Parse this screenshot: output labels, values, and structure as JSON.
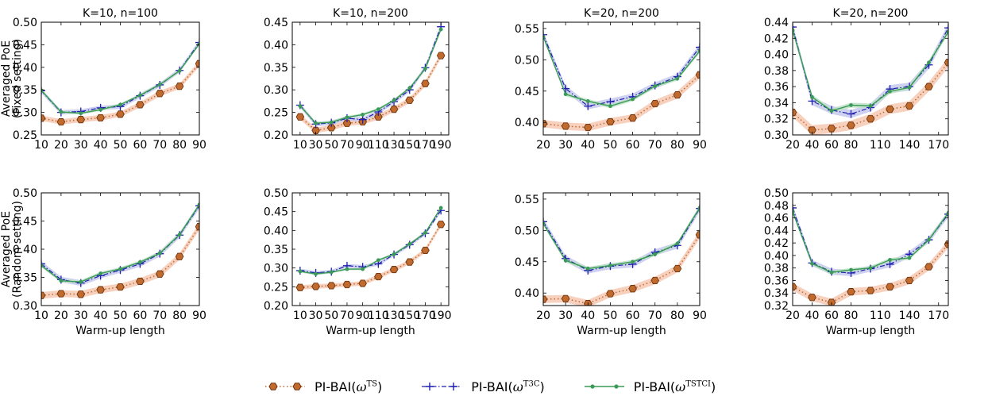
{
  "figure": {
    "row_ylabels": [
      [
        "Averaged PoE",
        "(Fixed setting)"
      ],
      [
        "Averaged PoE",
        "(Random setting)"
      ]
    ],
    "xlabel": "Warm-up length"
  },
  "legend": [
    {
      "prefix": "PI-BAI(",
      "omega": "ω",
      "sup": "TS",
      "suffix": ")",
      "series": "ts"
    },
    {
      "prefix": "PI-BAI(",
      "omega": "ω",
      "sup": "T3C",
      "suffix": ")",
      "series": "t3c"
    },
    {
      "prefix": "PI-BAI(",
      "omega": "ω",
      "sup": "TSTCI",
      "suffix": ")",
      "series": "tstci"
    }
  ],
  "colors": {
    "ts": "#c06a2e",
    "ts_edge": "#6e3410",
    "ts_band": "#f6c9b3",
    "t3c": "#1f1fb0",
    "t3c_band": "#c7c9ee",
    "tstci": "#3a9a57",
    "tstci_band": "#bfe2c8"
  },
  "chart_data": [
    {
      "type": "line",
      "title": "K=10, n=100",
      "xlabel": "",
      "ylabel": "Averaged PoE (Fixed setting)",
      "x": [
        10,
        20,
        30,
        40,
        50,
        60,
        70,
        80,
        90
      ],
      "xticks": [
        10,
        20,
        30,
        40,
        50,
        60,
        70,
        80,
        90
      ],
      "xlim": [
        10,
        90
      ],
      "ylim": [
        0.25,
        0.5
      ],
      "yticks": [
        "0.25",
        "0.30",
        "0.35",
        "0.40",
        "0.45",
        "0.50"
      ],
      "series": [
        {
          "name": "PI-BAI(ωTS)",
          "key": "ts",
          "values": [
            0.287,
            0.279,
            0.284,
            0.288,
            0.296,
            0.317,
            0.342,
            0.358,
            0.408
          ]
        },
        {
          "name": "PI-BAI(ωT3C)",
          "key": "t3c",
          "values": [
            0.348,
            0.3,
            0.302,
            0.31,
            0.313,
            0.337,
            0.361,
            0.393,
            0.455
          ]
        },
        {
          "name": "PI-BAI(ωTSTCI)",
          "key": "tstci",
          "values": [
            0.349,
            0.301,
            0.298,
            0.306,
            0.317,
            0.338,
            0.362,
            0.392,
            0.452
          ]
        }
      ]
    },
    {
      "type": "line",
      "title": "K=10, n=200",
      "xlabel": "",
      "ylabel": "",
      "x": [
        10,
        30,
        50,
        70,
        90,
        110,
        130,
        150,
        170,
        190
      ],
      "xticks": [
        10,
        30,
        50,
        70,
        90,
        110,
        130,
        150,
        170,
        190
      ],
      "xlim": [
        0,
        200
      ],
      "ylim": [
        0.2,
        0.45
      ],
      "yticks": [
        "0.20",
        "0.25",
        "0.30",
        "0.35",
        "0.40",
        "0.45"
      ],
      "series": [
        {
          "name": "PI-BAI(ωTS)",
          "key": "ts",
          "values": [
            0.24,
            0.21,
            0.216,
            0.226,
            0.229,
            0.24,
            0.257,
            0.277,
            0.314,
            0.376
          ]
        },
        {
          "name": "PI-BAI(ωT3C)",
          "key": "t3c",
          "values": [
            0.266,
            0.224,
            0.227,
            0.237,
            0.234,
            0.251,
            0.274,
            0.3,
            0.349,
            0.44
          ]
        },
        {
          "name": "PI-BAI(ωTSTCI)",
          "key": "tstci",
          "values": [
            0.264,
            0.226,
            0.228,
            0.239,
            0.245,
            0.257,
            0.277,
            0.304,
            0.347,
            0.434
          ]
        }
      ]
    },
    {
      "type": "line",
      "title": "K=20, n=200",
      "xlabel": "",
      "ylabel": "",
      "x": [
        20,
        30,
        40,
        50,
        60,
        70,
        80,
        90
      ],
      "xticks": [
        20,
        30,
        40,
        50,
        60,
        70,
        80,
        90
      ],
      "xlim": [
        20,
        90
      ],
      "ylim": [
        0.38,
        0.56
      ],
      "yticks": [
        "0.40",
        "0.45",
        "0.50",
        "0.55"
      ],
      "series": [
        {
          "name": "PI-BAI(ωTS)",
          "key": "ts",
          "values": [
            0.398,
            0.394,
            0.392,
            0.401,
            0.407,
            0.43,
            0.444,
            0.476
          ]
        },
        {
          "name": "PI-BAI(ωT3C)",
          "key": "t3c",
          "values": [
            0.54,
            0.454,
            0.426,
            0.433,
            0.441,
            0.459,
            0.473,
            0.52
          ]
        },
        {
          "name": "PI-BAI(ωTSTCI)",
          "key": "tstci",
          "values": [
            0.537,
            0.445,
            0.434,
            0.426,
            0.437,
            0.458,
            0.47,
            0.514
          ]
        }
      ]
    },
    {
      "type": "line",
      "title": "K=20, n=200",
      "xlabel": "",
      "ylabel": "",
      "x": [
        20,
        40,
        60,
        80,
        100,
        120,
        140,
        160,
        180
      ],
      "xticks": [
        20,
        40,
        60,
        80,
        110,
        140,
        170
      ],
      "xlim": [
        20,
        180
      ],
      "ylim": [
        0.3,
        0.44
      ],
      "yticks": [
        "0.30",
        "0.32",
        "0.34",
        "0.36",
        "0.38",
        "0.40",
        "0.42",
        "0.44"
      ],
      "series": [
        {
          "name": "PI-BAI(ωTS)",
          "key": "ts",
          "values": [
            0.328,
            0.306,
            0.308,
            0.312,
            0.32,
            0.332,
            0.336,
            0.36,
            0.39
          ]
        },
        {
          "name": "PI-BAI(ωT3C)",
          "key": "t3c",
          "values": [
            0.434,
            0.342,
            0.331,
            0.326,
            0.334,
            0.357,
            0.36,
            0.387,
            0.433
          ]
        },
        {
          "name": "PI-BAI(ωTSTCI)",
          "key": "tstci",
          "values": [
            0.43,
            0.347,
            0.33,
            0.337,
            0.336,
            0.354,
            0.359,
            0.39,
            0.428
          ]
        }
      ]
    },
    {
      "type": "line",
      "title": "",
      "xlabel": "Warm-up length",
      "ylabel": "Averaged PoE (Random setting)",
      "x": [
        10,
        20,
        30,
        40,
        50,
        60,
        70,
        80,
        90
      ],
      "xticks": [
        10,
        20,
        30,
        40,
        50,
        60,
        70,
        80,
        90
      ],
      "xlim": [
        10,
        90
      ],
      "ylim": [
        0.3,
        0.5
      ],
      "yticks": [
        "0.30",
        "0.35",
        "0.40",
        "0.45",
        "0.50"
      ],
      "series": [
        {
          "name": "PI-BAI(ωTS)",
          "key": "ts",
          "values": [
            0.318,
            0.321,
            0.32,
            0.328,
            0.333,
            0.343,
            0.356,
            0.387,
            0.44
          ]
        },
        {
          "name": "PI-BAI(ωT3C)",
          "key": "t3c",
          "values": [
            0.374,
            0.346,
            0.34,
            0.353,
            0.363,
            0.374,
            0.392,
            0.425,
            0.477
          ]
        },
        {
          "name": "PI-BAI(ωTSTCI)",
          "key": "tstci",
          "values": [
            0.371,
            0.344,
            0.342,
            0.357,
            0.365,
            0.377,
            0.393,
            0.426,
            0.479
          ]
        }
      ]
    },
    {
      "type": "line",
      "title": "",
      "xlabel": "Warm-up length",
      "ylabel": "",
      "x": [
        10,
        30,
        50,
        70,
        90,
        110,
        130,
        150,
        170,
        190
      ],
      "xticks": [
        10,
        30,
        50,
        70,
        90,
        110,
        130,
        150,
        170,
        190
      ],
      "xlim": [
        0,
        200
      ],
      "ylim": [
        0.2,
        0.5
      ],
      "yticks": [
        "0.20",
        "0.25",
        "0.30",
        "0.35",
        "0.40",
        "0.45",
        "0.50"
      ],
      "series": [
        {
          "name": "PI-BAI(ωTS)",
          "key": "ts",
          "values": [
            0.248,
            0.251,
            0.253,
            0.256,
            0.259,
            0.277,
            0.296,
            0.316,
            0.347,
            0.416
          ]
        },
        {
          "name": "PI-BAI(ωT3C)",
          "key": "t3c",
          "values": [
            0.293,
            0.287,
            0.29,
            0.306,
            0.303,
            0.311,
            0.336,
            0.362,
            0.392,
            0.453
          ]
        },
        {
          "name": "PI-BAI(ωTSTCI)",
          "key": "tstci",
          "values": [
            0.291,
            0.284,
            0.289,
            0.297,
            0.297,
            0.321,
            0.337,
            0.364,
            0.394,
            0.46
          ]
        }
      ]
    },
    {
      "type": "line",
      "title": "",
      "xlabel": "Warm-up length",
      "ylabel": "",
      "x": [
        20,
        30,
        40,
        50,
        60,
        70,
        80,
        90
      ],
      "xticks": [
        20,
        30,
        40,
        50,
        60,
        70,
        80,
        90
      ],
      "xlim": [
        20,
        90
      ],
      "ylim": [
        0.38,
        0.56
      ],
      "yticks": [
        "0.40",
        "0.45",
        "0.50",
        "0.55"
      ],
      "series": [
        {
          "name": "PI-BAI(ωTS)",
          "key": "ts",
          "values": [
            0.39,
            0.391,
            0.383,
            0.399,
            0.407,
            0.42,
            0.439,
            0.493
          ]
        },
        {
          "name": "PI-BAI(ωT3C)",
          "key": "t3c",
          "values": [
            0.514,
            0.455,
            0.436,
            0.443,
            0.446,
            0.465,
            0.476,
            0.535
          ]
        },
        {
          "name": "PI-BAI(ωTSTCI)",
          "key": "tstci",
          "values": [
            0.511,
            0.452,
            0.439,
            0.444,
            0.45,
            0.462,
            0.479,
            0.536
          ]
        }
      ]
    },
    {
      "type": "line",
      "title": "",
      "xlabel": "Warm-up length",
      "ylabel": "",
      "x": [
        20,
        40,
        60,
        80,
        100,
        120,
        140,
        160,
        180
      ],
      "xticks": [
        20,
        40,
        60,
        80,
        110,
        140,
        170
      ],
      "xlim": [
        20,
        180
      ],
      "ylim": [
        0.32,
        0.5
      ],
      "yticks": [
        "0.32",
        "0.34",
        "0.36",
        "0.38",
        "0.40",
        "0.42",
        "0.44",
        "0.46",
        "0.48",
        "0.50"
      ],
      "series": [
        {
          "name": "PI-BAI(ωTS)",
          "key": "ts",
          "values": [
            0.35,
            0.333,
            0.325,
            0.342,
            0.344,
            0.35,
            0.36,
            0.382,
            0.418
          ]
        },
        {
          "name": "PI-BAI(ωT3C)",
          "key": "t3c",
          "values": [
            0.476,
            0.388,
            0.374,
            0.372,
            0.379,
            0.386,
            0.402,
            0.425,
            0.466
          ]
        },
        {
          "name": "PI-BAI(ωTSTCI)",
          "key": "tstci",
          "values": [
            0.47,
            0.387,
            0.373,
            0.377,
            0.38,
            0.393,
            0.396,
            0.425,
            0.468
          ]
        }
      ]
    }
  ]
}
